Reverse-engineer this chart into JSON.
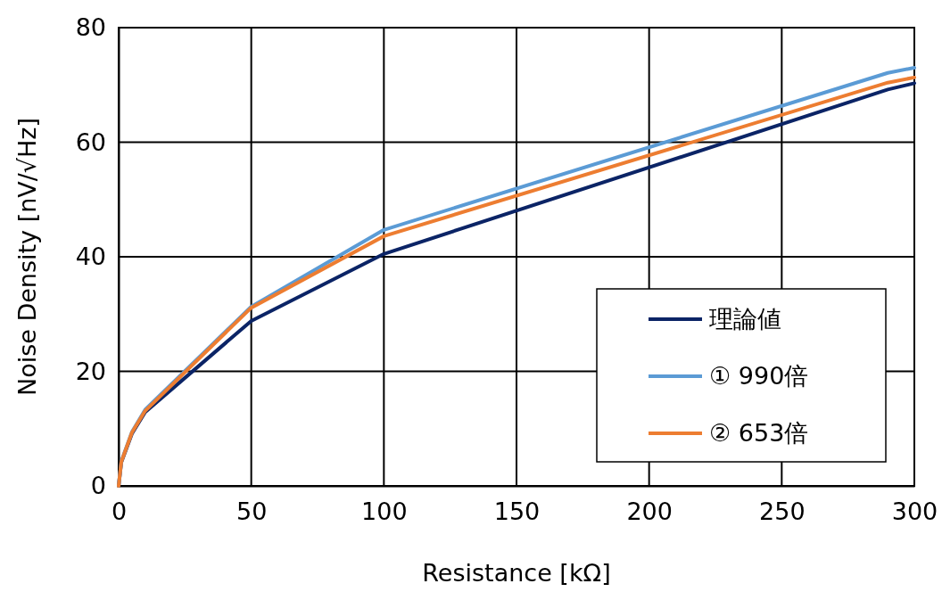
{
  "chart_data": {
    "type": "line",
    "xlabel": "Resistance [kΩ]",
    "ylabel": "Noise Density [nV/√Hz]",
    "x": [
      0,
      1,
      5,
      10,
      50,
      100,
      290,
      300
    ],
    "series": [
      {
        "name": "理論値",
        "color": "#0b2466",
        "values": [
          0,
          4.1,
          9.1,
          12.9,
          28.8,
          40.5,
          69.2,
          70.3
        ]
      },
      {
        "name": "① 990倍",
        "color": "#5b9bd5",
        "values": [
          0,
          4.3,
          9.4,
          13.3,
          31.3,
          44.7,
          72.1,
          73.0
        ]
      },
      {
        "name": "② 653倍",
        "color": "#ed7d31",
        "values": [
          0,
          4.2,
          9.3,
          13.1,
          31.1,
          43.6,
          70.4,
          71.3
        ]
      }
    ],
    "xlim": [
      0,
      300
    ],
    "xticks": [
      0,
      50,
      100,
      150,
      200,
      250,
      300
    ],
    "ylim": [
      0,
      80
    ],
    "yticks": [
      0,
      20,
      40,
      60,
      80
    ],
    "grid": true,
    "legend": "bottom right",
    "marker": "none",
    "line_style": "solid"
  }
}
